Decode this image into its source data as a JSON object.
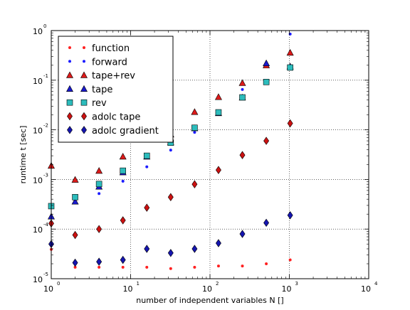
{
  "chart_data": {
    "type": "scatter",
    "title": "",
    "xlabel": "number of independent variables N []",
    "ylabel": "runtime t [sec]",
    "xscale": "log",
    "yscale": "log",
    "xlim": [
      1,
      10000
    ],
    "ylim": [
      1e-05,
      1
    ],
    "grid": true,
    "legend_position": "upper-left",
    "x_ticks": [
      {
        "base": "10",
        "exp": "0",
        "value": 1
      },
      {
        "base": "10",
        "exp": "1",
        "value": 10
      },
      {
        "base": "10",
        "exp": "2",
        "value": 100
      },
      {
        "base": "10",
        "exp": "3",
        "value": 1000
      },
      {
        "base": "10",
        "exp": "4",
        "value": 10000
      }
    ],
    "y_ticks": [
      {
        "base": "10",
        "exp": "-5",
        "value": 1e-05
      },
      {
        "base": "10",
        "exp": "-4",
        "value": 0.0001
      },
      {
        "base": "10",
        "exp": "-3",
        "value": 0.001
      },
      {
        "base": "10",
        "exp": "-2",
        "value": 0.01
      },
      {
        "base": "10",
        "exp": "-1",
        "value": 0.1
      },
      {
        "base": "10",
        "exp": "0",
        "value": 1
      }
    ],
    "x": [
      1,
      2,
      4,
      8,
      16,
      32,
      64,
      128,
      256,
      512,
      1024
    ],
    "series": [
      {
        "name": "function",
        "marker": "dot-small",
        "color": "#ff2020",
        "values": [
          3.9e-05,
          1.7e-05,
          1.7e-05,
          1.7e-05,
          1.7e-05,
          1.6e-05,
          1.7e-05,
          1.8e-05,
          1.8e-05,
          2e-05,
          2.4e-05
        ]
      },
      {
        "name": "forward",
        "marker": "dot",
        "color": "#1c1cff",
        "values": [
          0.00013,
          0.00035,
          0.00052,
          0.00092,
          0.0018,
          0.0039,
          0.0089,
          0.021,
          0.065,
          0.22,
          0.85
        ]
      },
      {
        "name": "tape+rev",
        "marker": "triangle",
        "color": "#dd1a1a",
        "values": [
          0.0019,
          0.00099,
          0.0015,
          0.0029,
          0.0077,
          0.0081,
          0.023,
          0.046,
          0.088,
          0.2,
          0.36
        ]
      },
      {
        "name": "tape",
        "marker": "triangle",
        "color": "#1a1acc",
        "values": [
          0.00018,
          0.00036,
          0.00072,
          0.0014,
          0.0029,
          0.0056,
          0.0108,
          0.0218,
          0.045,
          0.22,
          0.19
        ]
      },
      {
        "name": "rev",
        "marker": "square",
        "color": "#2cbcbc",
        "values": [
          0.00029,
          0.00044,
          0.00081,
          0.0015,
          0.003,
          0.0055,
          0.011,
          0.0225,
          0.045,
          0.092,
          0.18
        ]
      },
      {
        "name": "adolc tape",
        "marker": "diamond",
        "color": "#cc1111",
        "values": [
          0.00013,
          7.6e-05,
          0.0001,
          0.00015,
          0.00027,
          0.00044,
          0.0008,
          0.00155,
          0.0031,
          0.006,
          0.0135
        ]
      },
      {
        "name": "adolc gradient",
        "marker": "diamond",
        "color": "#1515b0",
        "values": [
          5e-05,
          2.1e-05,
          2.2e-05,
          2.4e-05,
          4e-05,
          3.3e-05,
          4e-05,
          5.2e-05,
          8e-05,
          0.000134,
          0.00019
        ]
      }
    ]
  }
}
